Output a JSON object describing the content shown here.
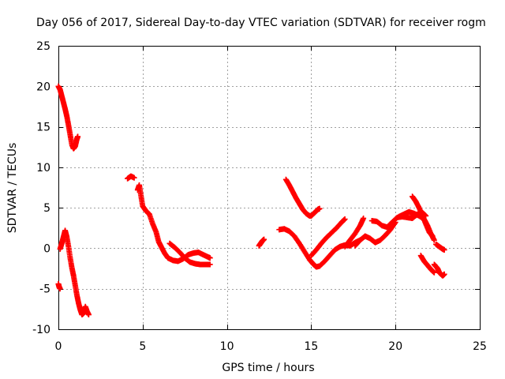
{
  "chart_data": {
    "type": "scatter",
    "title": "Day 056 of 2017, Sidereal Day-to-day VTEC variation (SDTVAR) for receiver rogm",
    "xlabel": "GPS time / hours",
    "ylabel": "SDTVAR / TECUs",
    "xlim": [
      0,
      25
    ],
    "ylim": [
      -10,
      25
    ],
    "xticks": [
      0,
      5,
      10,
      15,
      20,
      25
    ],
    "yticks": [
      -10,
      -5,
      0,
      5,
      10,
      15,
      20,
      25
    ],
    "grid": true,
    "marker": "plus",
    "color": "#ff0000",
    "segments": [
      [
        [
          0.0,
          20.0
        ],
        [
          0.1,
          19.6
        ],
        [
          0.2,
          18.8
        ],
        [
          0.3,
          18.0
        ],
        [
          0.4,
          17.2
        ],
        [
          0.5,
          16.3
        ],
        [
          0.6,
          15.2
        ],
        [
          0.7,
          14.0
        ],
        [
          0.8,
          12.8
        ],
        [
          0.9,
          12.3
        ],
        [
          1.0,
          12.6
        ],
        [
          1.1,
          13.5
        ],
        [
          1.15,
          13.8
        ]
      ],
      [
        [
          0.0,
          -4.4
        ],
        [
          0.05,
          -4.8
        ],
        [
          0.1,
          -5.0
        ]
      ],
      [
        [
          0.1,
          -0.1
        ],
        [
          0.2,
          0.6
        ],
        [
          0.3,
          1.4
        ],
        [
          0.4,
          2.2
        ],
        [
          0.5,
          1.4
        ],
        [
          0.6,
          0.2
        ],
        [
          0.7,
          -1.2
        ],
        [
          0.8,
          -2.4
        ],
        [
          0.9,
          -3.4
        ],
        [
          1.0,
          -4.6
        ],
        [
          1.1,
          -5.8
        ],
        [
          1.2,
          -6.8
        ],
        [
          1.3,
          -7.6
        ],
        [
          1.4,
          -8.2
        ],
        [
          1.5,
          -8.0
        ],
        [
          1.6,
          -7.2
        ],
        [
          1.7,
          -7.8
        ],
        [
          1.8,
          -8.2
        ]
      ],
      [
        [
          4.1,
          8.6
        ],
        [
          4.3,
          8.9
        ],
        [
          4.5,
          8.7
        ]
      ],
      [
        [
          4.7,
          7.2
        ],
        [
          4.8,
          7.8
        ],
        [
          4.9,
          6.5
        ],
        [
          5.0,
          5.2
        ],
        [
          5.2,
          4.6
        ],
        [
          5.4,
          4.2
        ],
        [
          5.6,
          3.0
        ],
        [
          5.8,
          2.0
        ],
        [
          5.95,
          0.8
        ],
        [
          6.1,
          0.2
        ],
        [
          6.3,
          -0.6
        ],
        [
          6.5,
          -1.2
        ],
        [
          6.8,
          -1.5
        ],
        [
          7.1,
          -1.6
        ],
        [
          7.4,
          -1.3
        ],
        [
          7.7,
          -0.8
        ],
        [
          8.0,
          -0.6
        ],
        [
          8.3,
          -0.5
        ],
        [
          8.6,
          -0.8
        ],
        [
          8.9,
          -1.1
        ],
        [
          9.0,
          -1.2
        ]
      ],
      [
        [
          6.6,
          0.6
        ],
        [
          6.9,
          0.1
        ],
        [
          7.2,
          -0.5
        ],
        [
          7.5,
          -1.2
        ],
        [
          7.8,
          -1.7
        ],
        [
          8.1,
          -1.9
        ],
        [
          8.4,
          -2.0
        ],
        [
          8.7,
          -2.0
        ],
        [
          9.0,
          -2.0
        ]
      ],
      [
        [
          11.9,
          0.3
        ],
        [
          12.0,
          0.6
        ],
        [
          12.1,
          0.9
        ],
        [
          12.2,
          1.1
        ]
      ],
      [
        [
          13.5,
          8.5
        ],
        [
          13.7,
          7.8
        ],
        [
          13.9,
          7.0
        ],
        [
          14.1,
          6.2
        ],
        [
          14.3,
          5.5
        ],
        [
          14.5,
          4.8
        ],
        [
          14.7,
          4.3
        ],
        [
          14.9,
          4.0
        ],
        [
          15.0,
          4.0
        ],
        [
          15.2,
          4.4
        ],
        [
          15.4,
          4.8
        ],
        [
          15.5,
          4.9
        ]
      ],
      [
        [
          13.1,
          2.3
        ],
        [
          13.4,
          2.4
        ],
        [
          13.7,
          2.1
        ],
        [
          14.0,
          1.5
        ],
        [
          14.3,
          0.6
        ],
        [
          14.6,
          -0.4
        ],
        [
          14.9,
          -1.4
        ],
        [
          15.1,
          -1.9
        ],
        [
          15.3,
          -2.3
        ],
        [
          15.5,
          -2.2
        ],
        [
          15.8,
          -1.6
        ],
        [
          16.1,
          -0.9
        ],
        [
          16.4,
          -0.2
        ],
        [
          16.7,
          0.2
        ],
        [
          17.0,
          0.4
        ],
        [
          17.3,
          0.3
        ],
        [
          17.6,
          0.7
        ],
        [
          17.9,
          1.0
        ]
      ],
      [
        [
          15.0,
          -0.9
        ],
        [
          15.3,
          -0.2
        ],
        [
          15.6,
          0.6
        ],
        [
          15.9,
          1.3
        ],
        [
          16.2,
          1.9
        ],
        [
          16.5,
          2.5
        ],
        [
          16.8,
          3.2
        ],
        [
          17.0,
          3.6
        ]
      ],
      [
        [
          17.6,
          0.3
        ],
        [
          17.9,
          1.0
        ],
        [
          18.2,
          1.5
        ],
        [
          18.5,
          1.2
        ],
        [
          18.8,
          0.7
        ],
        [
          19.1,
          1.0
        ],
        [
          19.4,
          1.6
        ],
        [
          19.7,
          2.3
        ],
        [
          20.0,
          3.2
        ]
      ],
      [
        [
          17.0,
          0.2
        ],
        [
          17.3,
          1.0
        ],
        [
          17.6,
          1.8
        ],
        [
          17.9,
          2.8
        ],
        [
          18.1,
          3.7
        ]
      ],
      [
        [
          18.6,
          3.4
        ],
        [
          18.9,
          3.3
        ],
        [
          19.2,
          2.8
        ],
        [
          19.5,
          2.6
        ],
        [
          19.8,
          3.2
        ],
        [
          20.1,
          3.8
        ],
        [
          20.4,
          3.9
        ],
        [
          20.7,
          3.8
        ],
        [
          21.0,
          3.7
        ],
        [
          21.3,
          4.2
        ],
        [
          21.6,
          4.4
        ],
        [
          21.8,
          4.0
        ]
      ],
      [
        [
          20.2,
          3.9
        ],
        [
          20.5,
          4.2
        ],
        [
          20.8,
          4.5
        ],
        [
          21.1,
          4.3
        ],
        [
          21.4,
          4.0
        ],
        [
          21.7,
          3.6
        ],
        [
          21.9,
          2.8
        ],
        [
          22.1,
          1.8
        ],
        [
          22.3,
          1.0
        ]
      ],
      [
        [
          21.0,
          6.4
        ],
        [
          21.2,
          5.8
        ],
        [
          21.4,
          5.0
        ],
        [
          21.6,
          4.0
        ],
        [
          21.8,
          3.0
        ],
        [
          22.0,
          2.0
        ],
        [
          22.2,
          1.5
        ]
      ],
      [
        [
          21.5,
          -0.9
        ],
        [
          21.7,
          -1.6
        ],
        [
          21.9,
          -2.1
        ],
        [
          22.1,
          -2.6
        ],
        [
          22.3,
          -3.0
        ]
      ],
      [
        [
          22.4,
          0.5
        ],
        [
          22.6,
          0.2
        ],
        [
          22.8,
          -0.1
        ],
        [
          22.9,
          -0.2
        ]
      ],
      [
        [
          22.3,
          -2.0
        ],
        [
          22.5,
          -2.5
        ],
        [
          22.6,
          -3.0
        ],
        [
          22.8,
          -3.4
        ],
        [
          22.9,
          -3.2
        ]
      ]
    ]
  }
}
